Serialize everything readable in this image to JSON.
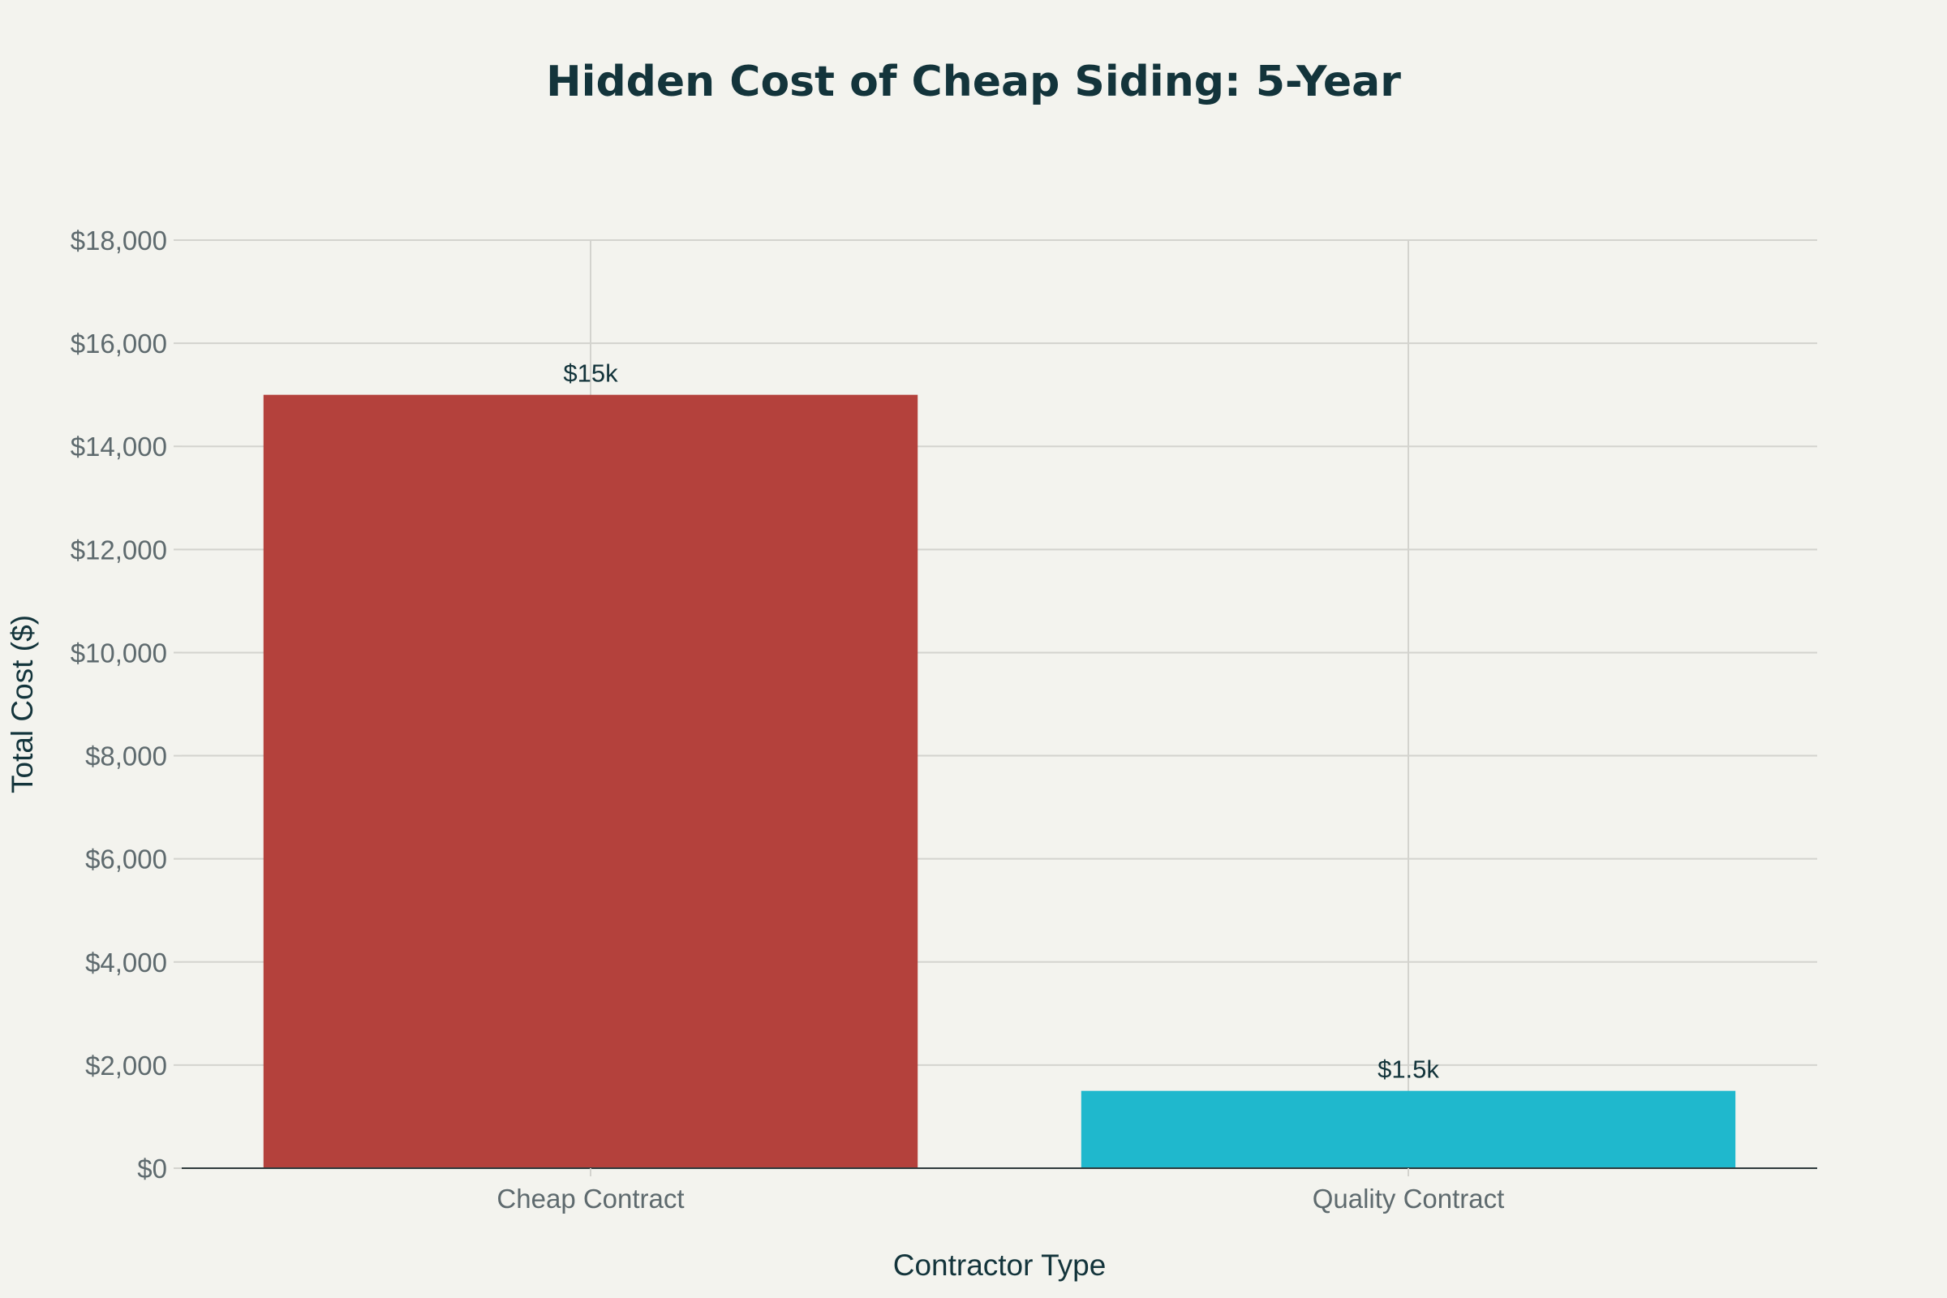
{
  "chart_data": {
    "type": "bar",
    "title": "Hidden Cost of Cheap Siding: 5-Year",
    "xlabel": "Contractor Type",
    "ylabel": "Total Cost ($)",
    "categories": [
      "Cheap Contract",
      "Quality Contract"
    ],
    "values": [
      15000,
      1500
    ],
    "data_labels": [
      "$15k",
      "$1.5k"
    ],
    "colors": [
      "#b4413c",
      "#1fb8cd"
    ],
    "ylim": [
      0,
      18000
    ],
    "yticks": [
      0,
      2000,
      4000,
      6000,
      8000,
      10000,
      12000,
      14000,
      16000,
      18000
    ],
    "ytick_labels": [
      "$0",
      "$2,000",
      "$4,000",
      "$6,000",
      "$8,000",
      "$10,000",
      "$12,000",
      "$14,000",
      "$16,000",
      "$18,000"
    ],
    "grid": true,
    "legend": "none"
  }
}
